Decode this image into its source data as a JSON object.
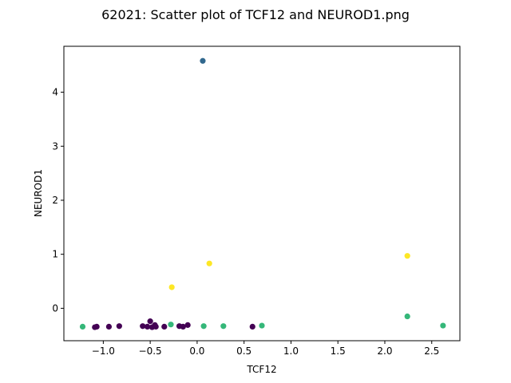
{
  "chart_data": {
    "type": "scatter",
    "title": "62021: Scatter plot of TCF12 and NEUROD1.png",
    "xlabel": "TCF12",
    "ylabel": "NEUROD1",
    "xlim": [
      -1.42,
      2.8
    ],
    "ylim": [
      -0.6,
      4.85
    ],
    "xticks": [
      -1.0,
      -0.5,
      0.0,
      0.5,
      1.0,
      1.5,
      2.0,
      2.5
    ],
    "xtick_labels": [
      "−1.0",
      "−0.5",
      "0.0",
      "0.5",
      "1.0",
      "1.5",
      "2.0",
      "2.5"
    ],
    "yticks": [
      0,
      1,
      2,
      3,
      4
    ],
    "ytick_labels": [
      "0",
      "1",
      "2",
      "3",
      "4"
    ],
    "grid": false,
    "colors": {
      "purple": "#440154",
      "blue": "#31688e",
      "green": "#35b779",
      "yellow": "#fde725"
    },
    "points": [
      {
        "x": 0.06,
        "y": 4.58,
        "color": "blue"
      },
      {
        "x": -0.27,
        "y": 0.39,
        "color": "yellow"
      },
      {
        "x": 0.13,
        "y": 0.83,
        "color": "yellow"
      },
      {
        "x": 2.24,
        "y": 0.97,
        "color": "yellow"
      },
      {
        "x": -1.22,
        "y": -0.34,
        "color": "green"
      },
      {
        "x": -0.28,
        "y": -0.3,
        "color": "green"
      },
      {
        "x": 0.07,
        "y": -0.33,
        "color": "green"
      },
      {
        "x": 0.28,
        "y": -0.33,
        "color": "green"
      },
      {
        "x": 0.69,
        "y": -0.32,
        "color": "green"
      },
      {
        "x": 2.24,
        "y": -0.15,
        "color": "green"
      },
      {
        "x": 2.62,
        "y": -0.32,
        "color": "green"
      },
      {
        "x": -1.09,
        "y": -0.35,
        "color": "purple"
      },
      {
        "x": -1.07,
        "y": -0.34,
        "color": "purple"
      },
      {
        "x": -0.94,
        "y": -0.34,
        "color": "purple"
      },
      {
        "x": -0.83,
        "y": -0.33,
        "color": "purple"
      },
      {
        "x": -0.58,
        "y": -0.33,
        "color": "purple"
      },
      {
        "x": -0.53,
        "y": -0.34,
        "color": "purple"
      },
      {
        "x": -0.5,
        "y": -0.24,
        "color": "purple"
      },
      {
        "x": -0.48,
        "y": -0.35,
        "color": "purple"
      },
      {
        "x": -0.45,
        "y": -0.31,
        "color": "purple"
      },
      {
        "x": -0.44,
        "y": -0.34,
        "color": "purple"
      },
      {
        "x": -0.35,
        "y": -0.34,
        "color": "purple"
      },
      {
        "x": -0.19,
        "y": -0.33,
        "color": "purple"
      },
      {
        "x": -0.15,
        "y": -0.34,
        "color": "purple"
      },
      {
        "x": -0.1,
        "y": -0.31,
        "color": "purple"
      },
      {
        "x": 0.59,
        "y": -0.34,
        "color": "purple"
      }
    ]
  }
}
